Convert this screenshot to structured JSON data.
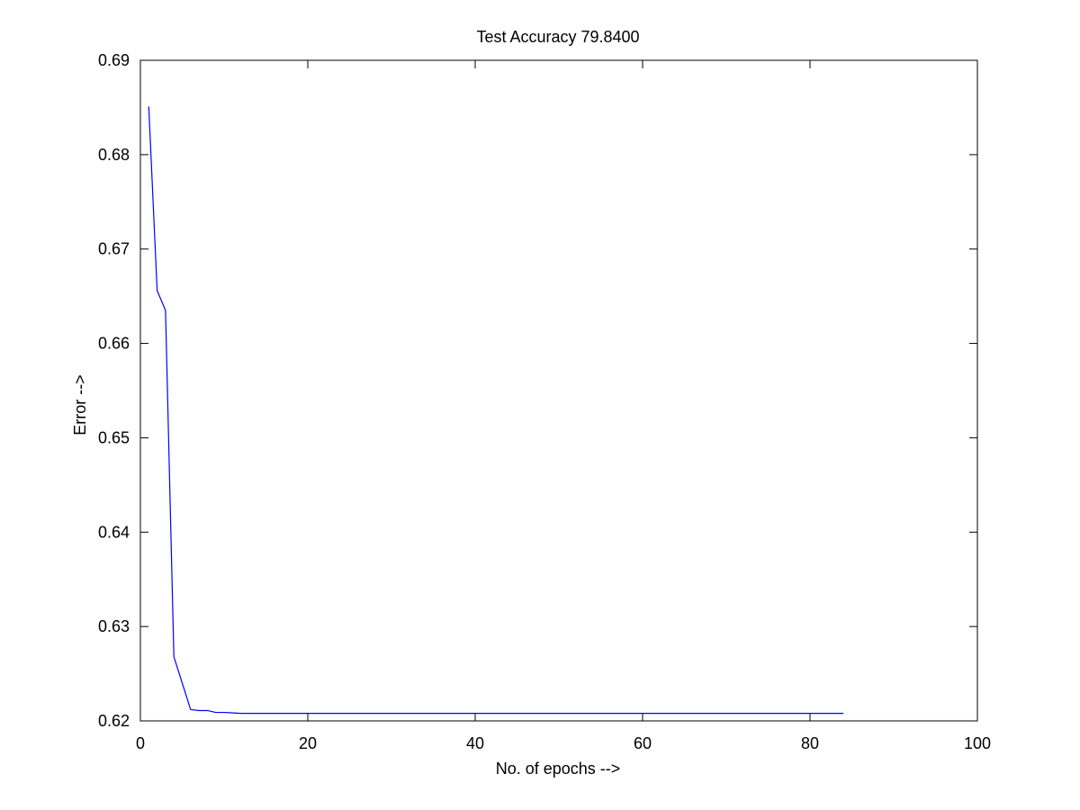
{
  "chart_data": {
    "type": "line",
    "title": "Test Accuracy 79.8400",
    "xlabel": "No. of epochs -->",
    "ylabel": "Error -->",
    "xlim": [
      0,
      100
    ],
    "ylim": [
      0.62,
      0.69
    ],
    "x_ticks": [
      0,
      20,
      40,
      60,
      80,
      100
    ],
    "y_ticks": [
      0.62,
      0.63,
      0.64,
      0.65,
      0.66,
      0.67,
      0.68,
      0.69
    ],
    "x_tick_labels": [
      "0",
      "20",
      "40",
      "60",
      "80",
      "100"
    ],
    "y_tick_labels": [
      "0.62",
      "0.63",
      "0.64",
      "0.65",
      "0.66",
      "0.67",
      "0.68",
      "0.69"
    ],
    "grid": false,
    "legend": null,
    "series": [
      {
        "color": "#0000ff",
        "x": [
          1,
          2,
          3,
          4,
          5,
          6,
          7,
          8,
          9,
          10,
          12,
          15,
          20,
          30,
          40,
          50,
          60,
          70,
          80,
          84
        ],
        "y": [
          0.6851,
          0.6656,
          0.6635,
          0.6268,
          0.624,
          0.6212,
          0.6211,
          0.6211,
          0.6209,
          0.6209,
          0.6208,
          0.6208,
          0.6208,
          0.6208,
          0.6208,
          0.6208,
          0.6208,
          0.6208,
          0.6208,
          0.6208
        ]
      }
    ]
  }
}
